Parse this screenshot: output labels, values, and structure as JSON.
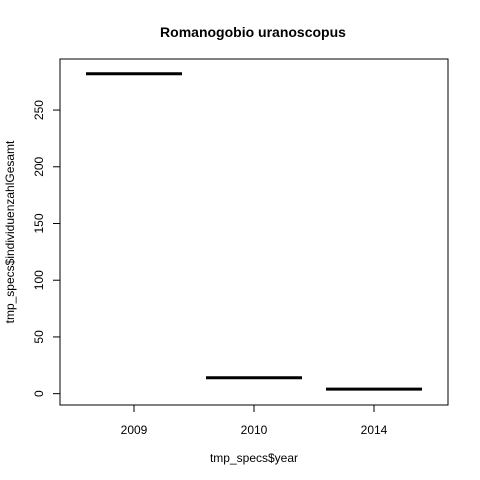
{
  "chart_data": {
    "type": "bar",
    "title": "Romanogobio uranoscopus",
    "xlabel": "tmp_specs$year",
    "ylabel": "tmp_specs$individuenzahlGesamt",
    "categories": [
      "2009",
      "2010",
      "2014"
    ],
    "values": [
      282,
      14,
      4
    ],
    "ylim": [
      -10,
      295
    ],
    "yticks": [
      0,
      50,
      100,
      150,
      200,
      250
    ],
    "grid": false,
    "legend": "none",
    "bar_color": "#000000"
  }
}
